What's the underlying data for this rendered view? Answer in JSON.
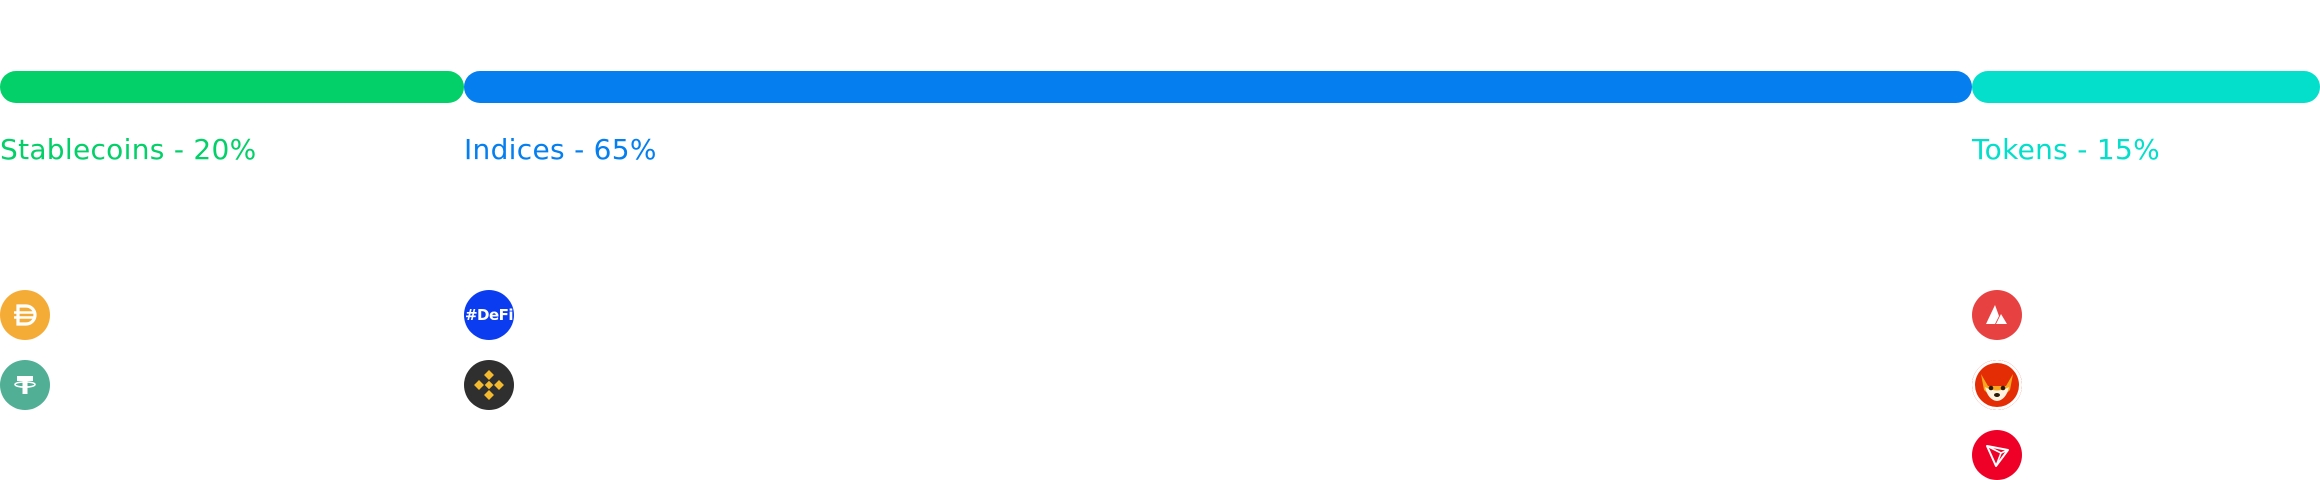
{
  "chart_data": {
    "type": "bar",
    "orientation": "horizontal-stacked",
    "categories": [
      "Stablecoins",
      "Indices",
      "Tokens"
    ],
    "values": [
      20,
      65,
      15
    ],
    "unit": "%",
    "labels": [
      "Stablecoins - 20%",
      "Indices - 65%",
      "Tokens - 15%"
    ],
    "colors": [
      "#03d068",
      "#057ff0",
      "#03dfca"
    ],
    "title": "",
    "xlabel": "",
    "ylabel": ""
  },
  "groups": [
    {
      "label": "Stablecoins - 20%",
      "color": "#03d068",
      "coins": [
        {
          "icon": "dai-icon",
          "color": "#f5ac37"
        },
        {
          "icon": "tether-icon",
          "color": "#50af95"
        }
      ]
    },
    {
      "label": "Indices - 65%",
      "color": "#057ff0",
      "coins": [
        {
          "icon": "defi-index-icon",
          "color": "#0b3cf0",
          "text": "#DeFi"
        },
        {
          "icon": "binance-icon",
          "color": "#2f2f2f"
        }
      ]
    },
    {
      "label": "Tokens - 15%",
      "color": "#03dfca",
      "coins": [
        {
          "icon": "avalanche-icon",
          "color": "#e84142"
        },
        {
          "icon": "shiba-inu-icon",
          "color": "#e42d04"
        },
        {
          "icon": "tron-icon",
          "color": "#ef0027"
        }
      ]
    }
  ]
}
